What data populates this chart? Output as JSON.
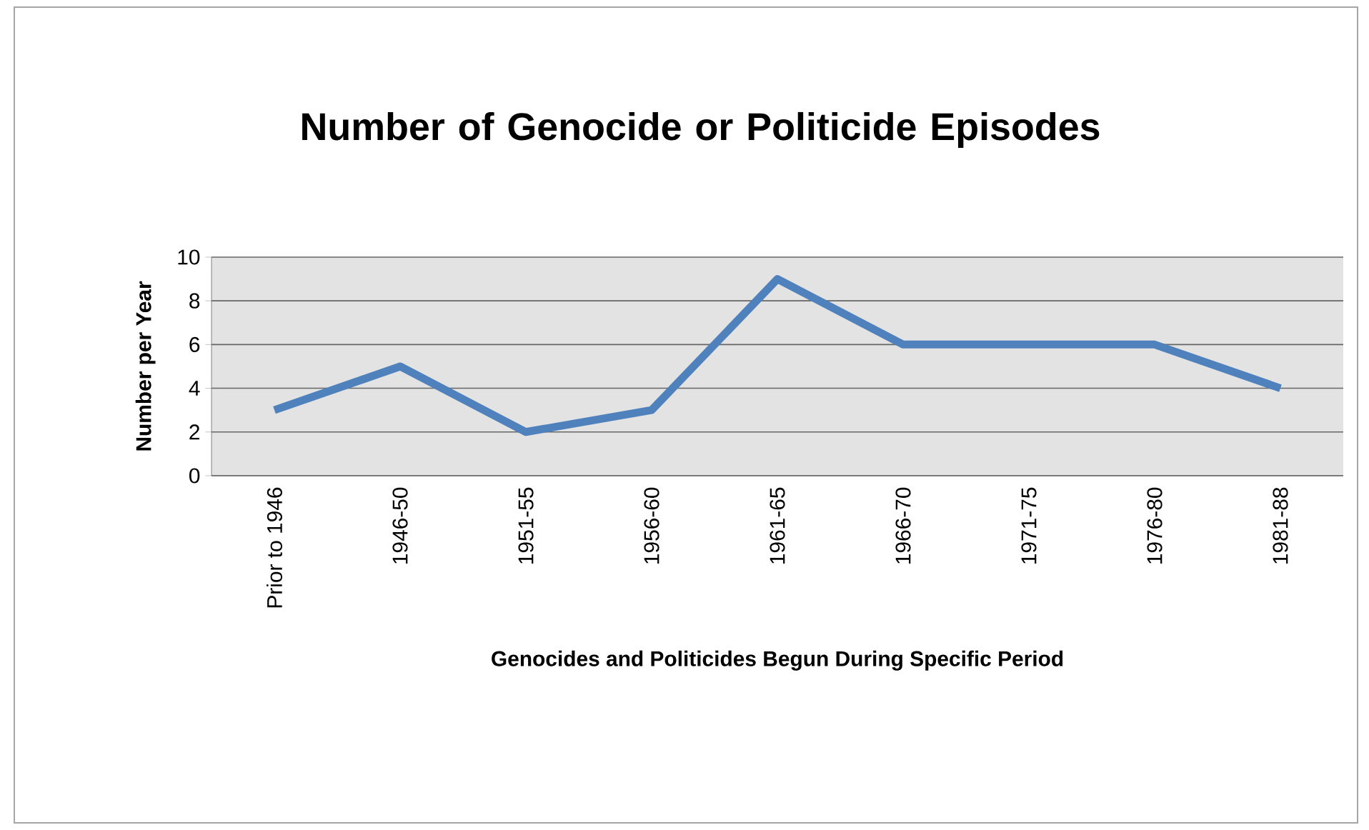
{
  "chart_data": {
    "type": "line",
    "title": "Number of Genocide or Politicide Episodes",
    "xlabel": "Genocides and Politicides Begun During Specific Period",
    "ylabel": "Number per Year",
    "categories": [
      "Prior to 1946",
      "1946-50",
      "1951-55",
      "1956-60",
      "1961-65",
      "1966-70",
      "1971-75",
      "1976-80",
      "1981-88"
    ],
    "values": [
      3,
      5,
      2,
      3,
      9,
      6,
      6,
      6,
      4
    ],
    "color": "#4f81bd",
    "ylim": [
      0,
      10
    ],
    "yticks": [
      0,
      2,
      4,
      6,
      8,
      10
    ],
    "grid": "y",
    "marker": "none",
    "line_style": "solid"
  }
}
